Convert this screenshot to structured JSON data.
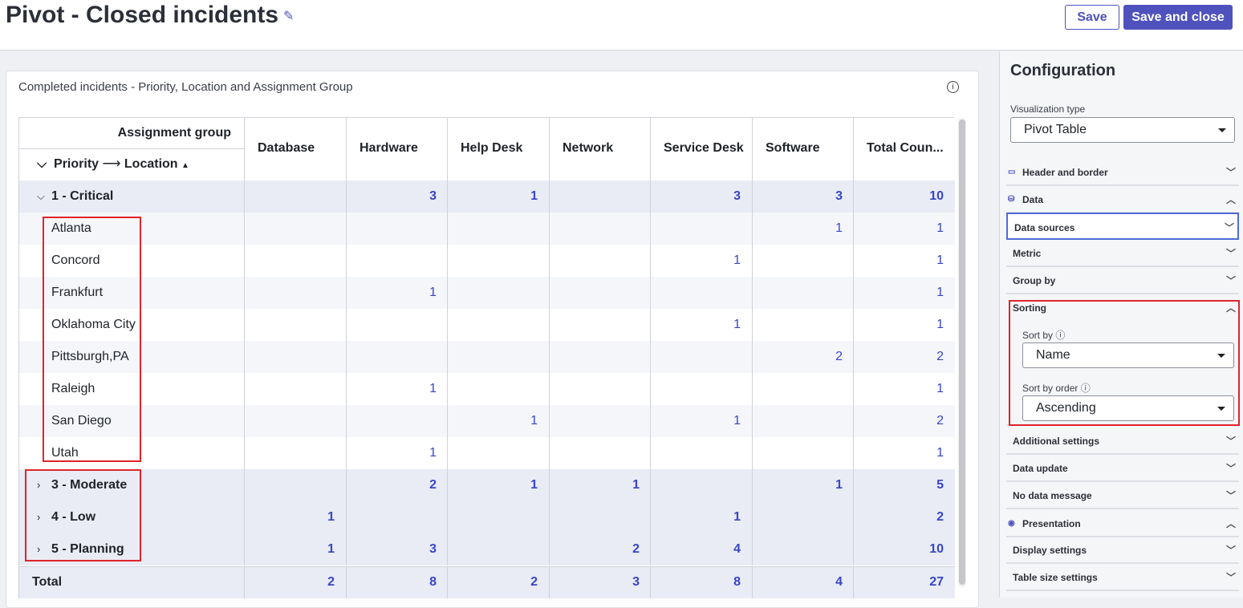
{
  "header": {
    "title": "Pivot - Closed incidents",
    "save": "Save",
    "save_and_close": "Save and close"
  },
  "widget": {
    "title": "Completed incidents - Priority, Location and Assignment Group",
    "table": {
      "column_group": "Assignment group",
      "row_group_1": "Priority",
      "row_group_2": "Location",
      "columns": [
        "Database",
        "Hardware",
        "Help Desk",
        "Network",
        "Service Desk",
        "Software",
        "Total Coun..."
      ],
      "rows": [
        {
          "label": "1 - Critical",
          "cells": [
            null,
            3,
            1,
            null,
            3,
            3,
            10
          ]
        },
        {
          "label": "Atlanta",
          "cells": [
            null,
            null,
            null,
            null,
            null,
            1,
            1
          ]
        },
        {
          "label": "Concord",
          "cells": [
            null,
            null,
            null,
            null,
            1,
            null,
            1
          ]
        },
        {
          "label": "Frankfurt",
          "cells": [
            null,
            1,
            null,
            null,
            null,
            null,
            1
          ]
        },
        {
          "label": "Oklahoma City",
          "cells": [
            null,
            null,
            null,
            null,
            1,
            null,
            1
          ]
        },
        {
          "label": "Pittsburgh,PA",
          "cells": [
            null,
            null,
            null,
            null,
            null,
            2,
            2
          ]
        },
        {
          "label": "Raleigh",
          "cells": [
            null,
            1,
            null,
            null,
            null,
            null,
            1
          ]
        },
        {
          "label": "San Diego",
          "cells": [
            null,
            null,
            1,
            null,
            1,
            null,
            2
          ]
        },
        {
          "label": "Utah",
          "cells": [
            null,
            1,
            null,
            null,
            null,
            null,
            1
          ]
        },
        {
          "label": "3 - Moderate",
          "cells": [
            null,
            2,
            1,
            1,
            null,
            1,
            5
          ]
        },
        {
          "label": "4 - Low",
          "cells": [
            1,
            null,
            null,
            null,
            1,
            null,
            2
          ]
        },
        {
          "label": "5 - Planning",
          "cells": [
            1,
            3,
            null,
            2,
            4,
            null,
            10
          ]
        }
      ],
      "total": {
        "label": "Total",
        "cells": [
          2,
          8,
          2,
          3,
          8,
          4,
          27
        ]
      }
    }
  },
  "config": {
    "title": "Configuration",
    "visualization_type_label": "Visualization type",
    "visualization_type": "Pivot Table",
    "sections": [
      "Header and border",
      "Data",
      "Data sources",
      "Metric",
      "Group by",
      "Sorting",
      "Additional settings",
      "Data update",
      "No data message",
      "Presentation",
      "Display settings",
      "Table size settings"
    ],
    "sort_by_label": "Sort by",
    "sort_by": "Name",
    "sort_order_label": "Sort by order",
    "sort_order": "Ascending"
  }
}
